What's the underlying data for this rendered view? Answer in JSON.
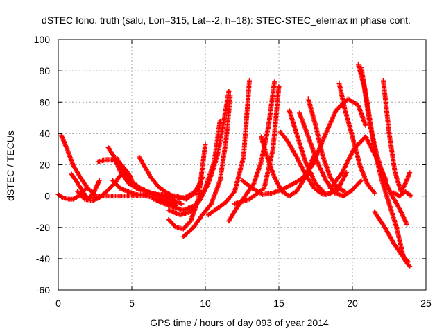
{
  "chart_data": {
    "type": "scatter",
    "title": "dSTEC Iono. truth (salu, Lon=315, Lat=-2, h=18): STEC-STEC_elemax in phase cont.",
    "xlabel": "GPS time / hours of day 093 of year 2014",
    "ylabel": "dSTEC  / TECUs",
    "xlim": [
      0,
      25
    ],
    "ylim": [
      -60,
      100
    ],
    "xticks": [
      0,
      5,
      10,
      15,
      20,
      25
    ],
    "yticks": [
      -60,
      -40,
      -20,
      0,
      20,
      40,
      60,
      80,
      100
    ],
    "xtick_labels": [
      "0",
      "5",
      "10",
      "15",
      "20",
      "25"
    ],
    "ytick_labels": [
      "-60",
      "-40",
      "-20",
      "0",
      "20",
      "40",
      "60",
      "80",
      "100"
    ],
    "grid": true,
    "legend": "none",
    "marker": "plus",
    "color": "#ff0000",
    "series": [
      {
        "x": [
          0.0,
          0.3,
          0.7,
          1.0,
          1.4,
          1.8
        ],
        "y": [
          1,
          -1,
          -2,
          -2,
          0,
          4
        ]
      },
      {
        "x": [
          0.2,
          0.6,
          1.0,
          1.5,
          2.0,
          2.5
        ],
        "y": [
          39,
          30,
          20,
          12,
          5,
          1
        ]
      },
      {
        "x": [
          0.9,
          1.2,
          1.6,
          2.0,
          2.4,
          2.8
        ],
        "y": [
          14,
          10,
          4,
          -2,
          2,
          10
        ]
      },
      {
        "x": [
          1.3,
          1.8,
          2.3,
          2.8,
          3.3,
          3.8,
          4.3
        ],
        "y": [
          3,
          -2,
          -3,
          -1,
          3,
          8,
          14
        ]
      },
      {
        "x": [
          1.8,
          2.4,
          3.0,
          3.6,
          4.2,
          4.8
        ],
        "y": [
          -2,
          -1,
          0,
          0,
          0,
          0
        ]
      },
      {
        "x": [
          2.7,
          3.2,
          3.8,
          4.3,
          4.8,
          5.0
        ],
        "y": [
          22,
          23,
          23,
          20,
          14,
          10
        ]
      },
      {
        "x": [
          3.4,
          3.8,
          4.2,
          4.8,
          5.5,
          6.3,
          7.2,
          8.0
        ],
        "y": [
          31,
          25,
          16,
          8,
          4,
          2,
          0,
          -4
        ]
      },
      {
        "x": [
          3.7,
          4.2,
          4.7,
          5.3,
          6.0,
          7.0,
          8.0
        ],
        "y": [
          10,
          5,
          3,
          1,
          0,
          -2,
          -6
        ]
      },
      {
        "x": [
          4.0,
          4.5,
          5.0,
          5.6,
          6.3,
          7.0,
          7.8,
          8.4
        ],
        "y": [
          24,
          15,
          9,
          5,
          2,
          0,
          -3,
          -5
        ]
      },
      {
        "x": [
          5.5,
          5.8,
          6.3,
          6.8,
          7.4,
          8.0,
          8.6,
          9.2,
          9.7
        ],
        "y": [
          25,
          20,
          12,
          6,
          2,
          -1,
          -1,
          2,
          8
        ]
      },
      {
        "x": [
          5.0,
          6.0,
          7.0,
          8.0,
          8.7,
          9.3,
          9.8
        ],
        "y": [
          0,
          1,
          1,
          0,
          -2,
          2,
          12
        ]
      },
      {
        "x": [
          7.5,
          8.0,
          8.5,
          9.0,
          9.5,
          10.0
        ],
        "y": [
          -15,
          -20,
          -21,
          -16,
          -3,
          33
        ]
      },
      {
        "x": [
          6.5,
          7.5,
          8.5,
          9.3,
          10.0,
          10.6,
          11.0
        ],
        "y": [
          -2,
          -6,
          -9,
          -6,
          5,
          22,
          48
        ]
      },
      {
        "x": [
          7.5,
          8.3,
          9.0,
          9.6,
          10.2,
          10.8,
          11.2,
          11.6
        ],
        "y": [
          -9,
          -12,
          -10,
          -3,
          8,
          25,
          45,
          67
        ]
      },
      {
        "x": [
          8.5,
          9.2,
          9.8,
          10.4,
          11.0,
          11.4,
          11.7
        ],
        "y": [
          -26,
          -20,
          -12,
          -5,
          10,
          35,
          64
        ]
      },
      {
        "x": [
          10.2,
          10.8,
          11.4,
          12.0,
          12.6,
          13.0
        ],
        "y": [
          -12,
          -8,
          -4,
          3,
          25,
          74
        ]
      },
      {
        "x": [
          11.6,
          12.1,
          12.7,
          13.3,
          13.8,
          14.3,
          14.7
        ],
        "y": [
          -16,
          -8,
          0,
          8,
          22,
          45,
          73
        ]
      },
      {
        "x": [
          12.0,
          13.0,
          14.0,
          14.6,
          15.0
        ],
        "y": [
          -5,
          -2,
          5,
          30,
          70
        ]
      },
      {
        "x": [
          12.5,
          13.2,
          13.9,
          14.6,
          15.4,
          16.2,
          17.0
        ],
        "y": [
          10,
          5,
          1,
          2,
          5,
          9,
          14
        ]
      },
      {
        "x": [
          13.8,
          14.2,
          14.7,
          15.2,
          15.7,
          16.2,
          16.8,
          17.4
        ],
        "y": [
          38,
          25,
          12,
          3,
          0,
          3,
          12,
          26
        ]
      },
      {
        "x": [
          15.1,
          15.6,
          16.2,
          16.8,
          17.4,
          18.0,
          18.6,
          19.2
        ],
        "y": [
          41,
          35,
          25,
          14,
          5,
          1,
          2,
          8
        ]
      },
      {
        "x": [
          15.7,
          16.2,
          16.8,
          17.5,
          18.2,
          19.0,
          19.6
        ],
        "y": [
          55,
          40,
          22,
          8,
          1,
          4,
          15
        ]
      },
      {
        "x": [
          16.4,
          17.0,
          17.6,
          18.2,
          18.8,
          19.4,
          20.0,
          20.6
        ],
        "y": [
          53,
          38,
          22,
          10,
          2,
          0,
          4,
          10
        ]
      },
      {
        "x": [
          17.0,
          17.5,
          18.0,
          18.5,
          19.0,
          19.5
        ],
        "y": [
          62,
          45,
          25,
          12,
          5,
          3
        ]
      },
      {
        "x": [
          16.5,
          17.3,
          18.1,
          18.9,
          19.7,
          20.4,
          20.9
        ],
        "y": [
          10,
          20,
          38,
          55,
          62,
          58,
          45
        ]
      },
      {
        "x": [
          19.1,
          19.5,
          20.0,
          20.5,
          21.0,
          21.5
        ],
        "y": [
          72,
          55,
          38,
          20,
          8,
          2
        ]
      },
      {
        "x": [
          20.4,
          20.8,
          21.2,
          21.7,
          22.2,
          22.7,
          23.2,
          23.7
        ],
        "y": [
          84,
          70,
          45,
          25,
          10,
          0,
          -8,
          -18
        ]
      },
      {
        "x": [
          20.6,
          21.0,
          21.5,
          22.0,
          22.5,
          23.0,
          23.5,
          23.9
        ],
        "y": [
          82,
          60,
          30,
          10,
          -5,
          -20,
          -40,
          -45
        ]
      },
      {
        "x": [
          22.1,
          22.5,
          22.9,
          23.3,
          23.6,
          23.9
        ],
        "y": [
          74,
          40,
          15,
          3,
          8,
          15
        ]
      },
      {
        "x": [
          21.5,
          22.2,
          22.8,
          23.3,
          23.8
        ],
        "y": [
          -10,
          -20,
          -30,
          -37,
          -42
        ]
      },
      {
        "x": [
          18.5,
          19.3,
          20.1,
          20.9,
          21.6,
          22.3
        ],
        "y": [
          5,
          15,
          30,
          38,
          25,
          10
        ]
      },
      {
        "x": [
          22.8,
          23.2,
          23.6,
          24.0
        ],
        "y": [
          2,
          0,
          3,
          0
        ]
      }
    ]
  }
}
